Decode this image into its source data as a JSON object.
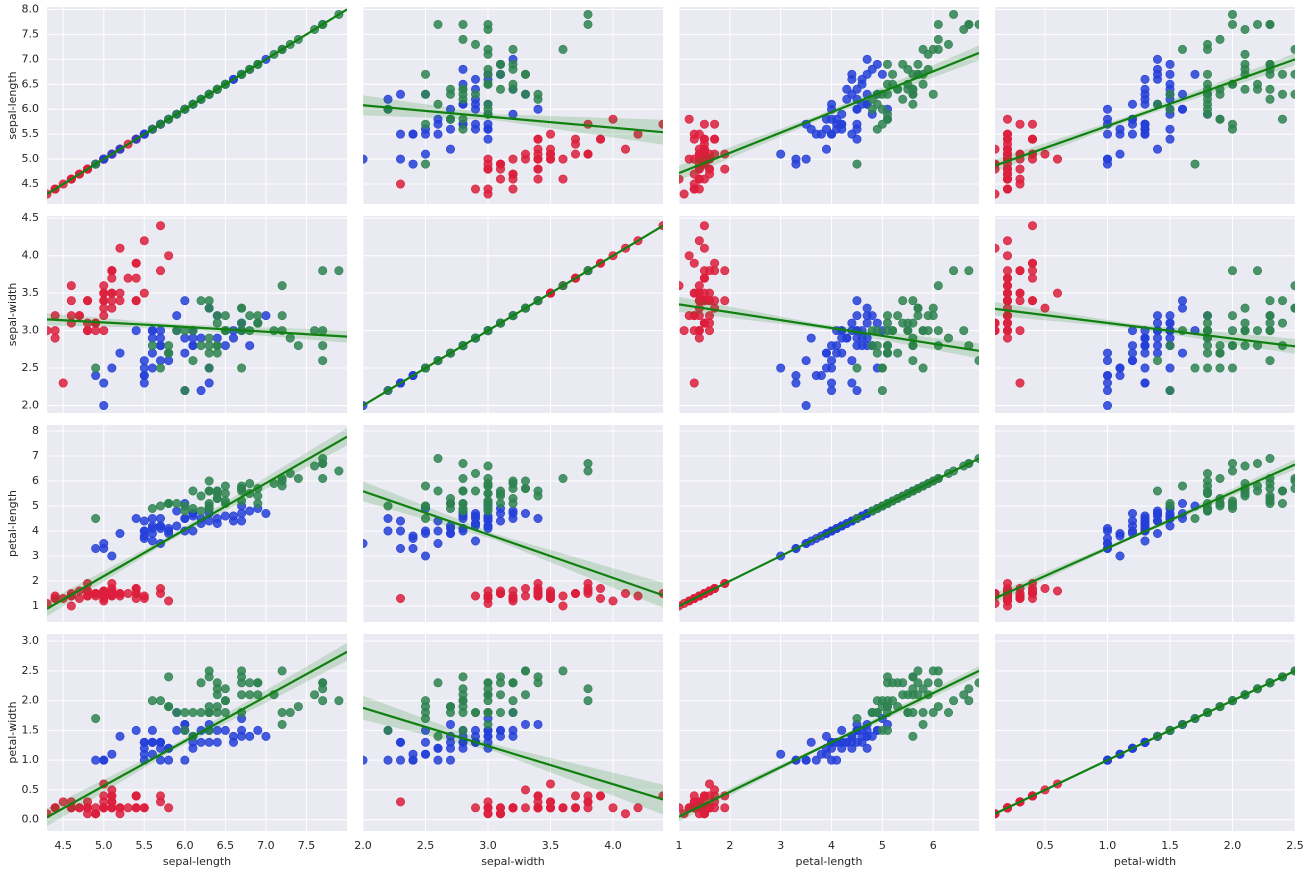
{
  "chart_data": {
    "type": "scatter",
    "variables": [
      "sepal-length",
      "sepal-width",
      "petal-length",
      "petal-width"
    ],
    "xlim": [
      [
        4.3,
        8.0
      ],
      [
        2.0,
        4.4
      ],
      [
        1.0,
        6.9
      ],
      [
        0.1,
        2.5
      ]
    ],
    "ylim": [
      [
        4.1,
        8.05
      ],
      [
        1.9,
        4.53
      ],
      [
        0.36,
        8.24
      ],
      [
        -0.19,
        3.12
      ]
    ],
    "xticks": [
      [
        4.5,
        {
          "value": 5,
          "label": "5.0"
        },
        5.5,
        {
          "value": 6,
          "label": "6.0"
        },
        6.5,
        {
          "value": 7,
          "label": "7.0"
        },
        7.5
      ],
      [
        {
          "value": 2,
          "label": "2.0"
        },
        2.5,
        {
          "value": 3,
          "label": "3.0"
        },
        3.5,
        {
          "value": 4,
          "label": "4.0"
        }
      ],
      [
        1,
        2,
        3,
        4,
        5,
        6
      ],
      [
        0.5,
        {
          "value": 1,
          "label": "1.0"
        },
        1.5,
        {
          "value": 2,
          "label": "2.0"
        },
        2.5
      ]
    ],
    "yticks": [
      [
        4.5,
        {
          "value": 5,
          "label": "5.0"
        },
        5.5,
        {
          "value": 6,
          "label": "6.0"
        },
        6.5,
        {
          "value": 7,
          "label": "7.0"
        },
        7.5,
        {
          "value": 8,
          "label": "8.0"
        }
      ],
      [
        {
          "value": 2,
          "label": "2.0"
        },
        2.5,
        {
          "value": 3,
          "label": "3.0"
        },
        3.5,
        {
          "value": 4,
          "label": "4.0"
        },
        4.5
      ],
      [
        1,
        2,
        3,
        4,
        5,
        6,
        7,
        8
      ],
      [
        {
          "value": 0,
          "label": "0.0"
        },
        0.5,
        {
          "value": 1,
          "label": "1.0"
        },
        1.5,
        {
          "value": 2,
          "label": "2.0"
        },
        2.5,
        {
          "value": 3,
          "label": "3.0"
        }
      ]
    ],
    "grid": true,
    "fit_color": "#108010",
    "series": [
      {
        "color": "#dc1e3c",
        "values": [
          [
            5.1,
            4.9,
            4.7,
            4.6,
            5.0,
            5.4,
            4.6,
            5.0,
            4.4,
            4.9,
            5.4,
            4.8,
            4.8,
            4.3,
            5.8,
            5.7,
            5.4,
            5.1,
            5.7,
            5.1,
            5.4,
            5.1,
            4.6,
            5.1,
            4.8,
            5.0,
            5.0,
            5.2,
            5.2,
            4.7,
            4.8,
            5.4,
            5.2,
            5.5,
            4.9,
            5.0,
            5.5,
            4.9,
            4.4,
            5.1,
            5.0,
            4.5,
            4.4,
            5.0,
            5.1,
            4.8,
            5.1,
            4.6,
            5.3,
            5.0
          ],
          [
            3.5,
            3.0,
            3.2,
            3.1,
            3.6,
            3.9,
            3.4,
            3.4,
            2.9,
            3.1,
            3.7,
            3.4,
            3.0,
            3.0,
            4.0,
            4.4,
            3.9,
            3.5,
            3.8,
            3.8,
            3.4,
            3.7,
            3.6,
            3.3,
            3.4,
            3.0,
            3.4,
            3.5,
            3.4,
            3.2,
            3.1,
            3.4,
            4.1,
            4.2,
            3.1,
            3.2,
            3.5,
            3.1,
            3.0,
            3.4,
            3.5,
            2.3,
            3.2,
            3.5,
            3.8,
            3.0,
            3.8,
            3.2,
            3.7,
            3.3
          ],
          [
            1.4,
            1.4,
            1.3,
            1.5,
            1.4,
            1.7,
            1.4,
            1.5,
            1.4,
            1.5,
            1.5,
            1.6,
            1.4,
            1.1,
            1.2,
            1.5,
            1.3,
            1.4,
            1.7,
            1.5,
            1.7,
            1.5,
            1.0,
            1.7,
            1.9,
            1.6,
            1.6,
            1.5,
            1.4,
            1.6,
            1.6,
            1.5,
            1.5,
            1.4,
            1.5,
            1.2,
            1.3,
            1.5,
            1.3,
            1.5,
            1.3,
            1.3,
            1.3,
            1.6,
            1.9,
            1.4,
            1.6,
            1.4,
            1.5,
            1.4
          ],
          [
            0.2,
            0.2,
            0.2,
            0.2,
            0.2,
            0.4,
            0.3,
            0.2,
            0.2,
            0.1,
            0.2,
            0.2,
            0.1,
            0.1,
            0.2,
            0.4,
            0.4,
            0.3,
            0.3,
            0.3,
            0.2,
            0.4,
            0.2,
            0.5,
            0.2,
            0.2,
            0.4,
            0.2,
            0.2,
            0.2,
            0.2,
            0.4,
            0.1,
            0.2,
            0.1,
            0.2,
            0.2,
            0.1,
            0.2,
            0.2,
            0.3,
            0.3,
            0.2,
            0.6,
            0.4,
            0.3,
            0.2,
            0.2,
            0.2,
            0.2
          ]
        ]
      },
      {
        "color": "#2540d8",
        "values": [
          [
            7.0,
            6.4,
            6.9,
            5.5,
            6.5,
            5.7,
            6.3,
            4.9,
            6.6,
            5.2,
            5.0,
            5.9,
            6.0,
            6.1,
            5.6,
            6.7,
            5.6,
            5.8,
            6.2,
            5.6,
            5.9,
            6.1,
            6.3,
            6.1,
            6.4,
            6.6,
            6.8,
            6.7,
            6.0,
            5.7,
            5.5,
            5.5,
            5.8,
            6.0,
            5.4,
            6.0,
            6.7,
            6.3,
            5.6,
            5.5,
            5.5,
            6.1,
            5.8,
            5.0,
            5.6,
            5.7,
            5.7,
            6.2,
            5.1,
            5.7
          ],
          [
            3.2,
            3.2,
            3.1,
            2.3,
            2.8,
            2.8,
            3.3,
            2.4,
            2.9,
            2.7,
            2.0,
            3.0,
            2.2,
            2.9,
            2.9,
            3.1,
            3.0,
            2.7,
            2.2,
            2.5,
            3.2,
            2.8,
            2.5,
            2.8,
            2.9,
            3.0,
            2.8,
            3.0,
            2.9,
            2.6,
            2.4,
            2.4,
            2.7,
            2.7,
            3.0,
            3.4,
            3.1,
            2.3,
            3.0,
            2.5,
            2.6,
            3.0,
            2.6,
            2.3,
            2.7,
            3.0,
            2.9,
            2.9,
            2.5,
            2.8
          ],
          [
            4.7,
            4.5,
            4.9,
            4.0,
            4.6,
            4.5,
            4.7,
            3.3,
            4.6,
            3.9,
            3.5,
            4.2,
            4.0,
            4.7,
            3.6,
            4.4,
            4.5,
            4.1,
            4.5,
            3.9,
            4.8,
            4.0,
            4.9,
            4.7,
            4.3,
            4.4,
            4.8,
            5.0,
            4.5,
            3.5,
            3.8,
            3.7,
            3.9,
            5.1,
            4.5,
            4.5,
            4.7,
            4.4,
            4.1,
            4.0,
            4.4,
            4.6,
            4.0,
            3.3,
            4.2,
            4.2,
            4.2,
            4.3,
            3.0,
            4.1
          ],
          [
            1.4,
            1.5,
            1.5,
            1.3,
            1.5,
            1.3,
            1.6,
            1.0,
            1.3,
            1.4,
            1.0,
            1.5,
            1.0,
            1.4,
            1.3,
            1.4,
            1.5,
            1.0,
            1.5,
            1.1,
            1.8,
            1.3,
            1.5,
            1.2,
            1.3,
            1.4,
            1.4,
            1.7,
            1.5,
            1.0,
            1.1,
            1.0,
            1.2,
            1.6,
            1.5,
            1.6,
            1.5,
            1.3,
            1.3,
            1.3,
            1.2,
            1.4,
            1.2,
            1.0,
            1.3,
            1.2,
            1.3,
            1.3,
            1.1,
            1.3
          ]
        ]
      },
      {
        "color": "#2e8350",
        "values": [
          [
            6.3,
            5.8,
            7.1,
            6.3,
            6.5,
            7.6,
            4.9,
            7.3,
            6.7,
            7.2,
            6.5,
            6.4,
            6.8,
            5.7,
            5.8,
            6.4,
            6.5,
            7.7,
            7.7,
            6.0,
            6.9,
            5.6,
            7.7,
            6.3,
            6.7,
            7.2,
            6.2,
            6.1,
            6.4,
            7.2,
            7.4,
            7.9,
            6.4,
            6.3,
            6.1,
            7.7,
            6.3,
            6.4,
            6.0,
            6.9,
            6.7,
            6.9,
            5.8,
            6.8,
            6.7,
            6.7,
            6.3,
            6.5,
            6.2,
            5.9
          ],
          [
            3.3,
            2.7,
            3.0,
            2.9,
            3.0,
            3.0,
            2.5,
            2.9,
            2.5,
            3.6,
            3.2,
            2.7,
            3.0,
            2.5,
            2.8,
            3.2,
            3.0,
            3.8,
            2.6,
            2.2,
            3.2,
            2.8,
            2.8,
            2.7,
            3.3,
            3.2,
            2.8,
            3.0,
            2.8,
            3.0,
            2.8,
            3.8,
            2.8,
            2.8,
            2.6,
            3.0,
            3.4,
            3.1,
            3.0,
            3.1,
            3.1,
            3.1,
            2.7,
            3.2,
            3.3,
            3.0,
            2.5,
            3.0,
            3.4,
            3.0
          ],
          [
            6.0,
            5.1,
            5.9,
            5.6,
            5.8,
            6.6,
            4.5,
            6.3,
            5.8,
            6.1,
            5.1,
            5.3,
            5.5,
            5.0,
            5.1,
            5.3,
            5.5,
            6.7,
            6.9,
            5.0,
            5.7,
            4.9,
            6.7,
            4.9,
            5.7,
            6.0,
            4.8,
            4.9,
            5.6,
            5.8,
            6.1,
            6.4,
            5.6,
            5.1,
            5.6,
            6.1,
            5.6,
            5.5,
            4.8,
            5.4,
            5.6,
            5.1,
            5.1,
            5.9,
            5.7,
            5.2,
            5.0,
            5.2,
            5.4,
            5.1
          ],
          [
            2.5,
            1.9,
            2.1,
            1.8,
            2.2,
            2.1,
            1.7,
            1.8,
            1.8,
            2.5,
            2.0,
            1.9,
            2.1,
            2.0,
            2.4,
            2.3,
            1.8,
            2.2,
            2.3,
            1.5,
            2.3,
            2.0,
            2.0,
            1.8,
            2.1,
            1.8,
            1.8,
            1.8,
            2.1,
            1.6,
            1.9,
            2.0,
            2.2,
            1.5,
            1.4,
            2.3,
            2.4,
            1.8,
            1.8,
            2.1,
            2.4,
            2.3,
            1.9,
            2.3,
            2.5,
            2.3,
            1.9,
            2.0,
            2.3,
            1.8
          ]
        ]
      }
    ],
    "fits": [
      [
        {
          "x": [
            4.3,
            5.84,
            8.0
          ],
          "y": [
            4.3,
            5.84,
            8.0
          ],
          "ci": [
            0,
            0,
            0
          ]
        },
        {
          "x": [
            2.0,
            3.06,
            4.4
          ],
          "y": [
            6.08,
            5.84,
            5.54
          ],
          "ci": [
            0.2,
            0.06,
            0.25
          ]
        },
        {
          "x": [
            1.0,
            3.76,
            6.9
          ],
          "y": [
            4.72,
            5.84,
            7.13
          ],
          "ci": [
            0.15,
            0.05,
            0.15
          ]
        },
        {
          "x": [
            0.1,
            1.2,
            2.5
          ],
          "y": [
            4.87,
            5.84,
            7.0
          ],
          "ci": [
            0.12,
            0.05,
            0.12
          ]
        }
      ],
      [
        {
          "x": [
            4.3,
            5.84,
            8.0
          ],
          "y": [
            3.15,
            3.06,
            2.92
          ],
          "ci": [
            0.08,
            0.03,
            0.08
          ]
        },
        {
          "x": [
            2.0,
            3.06,
            4.4
          ],
          "y": [
            2.0,
            3.06,
            4.4
          ],
          "ci": [
            0,
            0,
            0
          ]
        },
        {
          "x": [
            1.0,
            3.76,
            6.9
          ],
          "y": [
            3.35,
            3.06,
            2.73
          ],
          "ci": [
            0.1,
            0.03,
            0.1
          ]
        },
        {
          "x": [
            0.1,
            1.2,
            2.5
          ],
          "y": [
            3.29,
            3.06,
            2.79
          ],
          "ci": [
            0.09,
            0.03,
            0.1
          ]
        }
      ],
      [
        {
          "x": [
            4.3,
            5.84,
            8.0
          ],
          "y": [
            0.89,
            3.76,
            7.77
          ],
          "ci": [
            0.3,
            0.1,
            0.35
          ]
        },
        {
          "x": [
            2.0,
            3.06,
            4.4
          ],
          "y": [
            5.59,
            3.76,
            1.43
          ],
          "ci": [
            0.4,
            0.12,
            0.5
          ]
        },
        {
          "x": [
            1.0,
            3.76,
            6.9
          ],
          "y": [
            1.0,
            3.76,
            6.9
          ],
          "ci": [
            0,
            0,
            0
          ]
        },
        {
          "x": [
            0.1,
            1.2,
            2.5
          ],
          "y": [
            1.31,
            3.76,
            6.66
          ],
          "ci": [
            0.2,
            0.06,
            0.2
          ]
        }
      ],
      [
        {
          "x": [
            4.3,
            5.84,
            8.0
          ],
          "y": [
            0.04,
            1.2,
            2.82
          ],
          "ci": [
            0.15,
            0.05,
            0.15
          ]
        },
        {
          "x": [
            2.0,
            3.06,
            4.4
          ],
          "y": [
            1.88,
            1.2,
            0.34
          ],
          "ci": [
            0.2,
            0.06,
            0.25
          ]
        },
        {
          "x": [
            1.0,
            3.76,
            6.9
          ],
          "y": [
            0.05,
            1.2,
            2.5
          ],
          "ci": [
            0.08,
            0.03,
            0.08
          ]
        },
        {
          "x": [
            0.1,
            1.2,
            2.5
          ],
          "y": [
            0.1,
            1.2,
            2.5
          ],
          "ci": [
            0,
            0,
            0
          ]
        }
      ]
    ]
  }
}
